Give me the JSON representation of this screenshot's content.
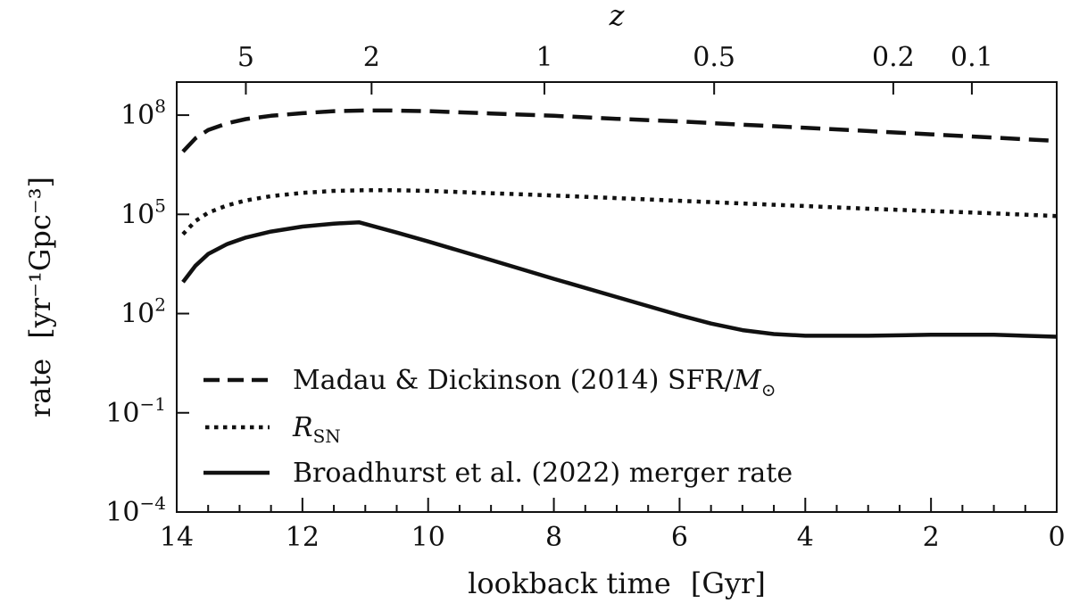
{
  "chart_data": {
    "type": "line",
    "xlabel": "lookback time",
    "xlabel_unit": "[Gyr]",
    "x_axis_reversed": true,
    "xlim": [
      14,
      0
    ],
    "x_ticks": [
      14,
      12,
      10,
      8,
      6,
      4,
      2,
      0
    ],
    "x_tick_labels": [
      "14",
      "12",
      "10",
      "8",
      "6",
      "4",
      "2",
      "0"
    ],
    "top_axis_label": "z",
    "top_ticks": [
      {
        "z": "5",
        "lookback": 12.9
      },
      {
        "z": "2",
        "lookback": 10.9
      },
      {
        "z": "1",
        "lookback": 8.15
      },
      {
        "z": "0.5",
        "lookback": 5.45
      },
      {
        "z": "0.2",
        "lookback": 2.6
      },
      {
        "z": "0.1",
        "lookback": 1.35
      }
    ],
    "ylabel": "rate",
    "ylabel_unit": "[yr⁻¹Gpc⁻³]",
    "y_scale": "log",
    "ylim_log10": [
      -4,
      9
    ],
    "y_ticks": [
      {
        "log10": 8,
        "base": "10",
        "exp": "8"
      },
      {
        "log10": 5,
        "base": "10",
        "exp": "5"
      },
      {
        "log10": 2,
        "base": "10",
        "exp": "2"
      },
      {
        "log10": -1,
        "base": "10",
        "exp": "−1"
      },
      {
        "log10": -4,
        "base": "10",
        "exp": "−4"
      }
    ],
    "grid": false,
    "legend_position": "bottom-left",
    "series": [
      {
        "key": "madau",
        "style": "dashed",
        "legend_parts": [
          "Madau & Dickinson (2014) SFR/",
          "M",
          "⊙"
        ],
        "x": [
          13.9,
          13.7,
          13.5,
          13.2,
          12.9,
          12.5,
          12.0,
          11.5,
          11.0,
          10.6,
          10.0,
          9.0,
          8.0,
          7.0,
          6.0,
          5.0,
          4.0,
          3.0,
          2.0,
          1.0,
          0.0
        ],
        "y_log10": [
          6.9,
          7.3,
          7.55,
          7.75,
          7.88,
          7.98,
          8.06,
          8.12,
          8.14,
          8.14,
          8.12,
          8.05,
          7.98,
          7.89,
          7.81,
          7.71,
          7.62,
          7.52,
          7.42,
          7.32,
          7.22
        ]
      },
      {
        "key": "rsn",
        "style": "dotted",
        "legend_parts": [
          "R",
          "SN"
        ],
        "x": [
          13.9,
          13.7,
          13.5,
          13.2,
          12.9,
          12.5,
          12.0,
          11.5,
          11.0,
          10.6,
          10.0,
          9.0,
          8.0,
          7.0,
          6.0,
          5.0,
          4.0,
          3.0,
          2.0,
          1.0,
          0.0
        ],
        "y_log10": [
          4.4,
          4.8,
          5.05,
          5.27,
          5.42,
          5.55,
          5.65,
          5.71,
          5.73,
          5.73,
          5.71,
          5.64,
          5.57,
          5.49,
          5.41,
          5.33,
          5.25,
          5.17,
          5.1,
          5.03,
          4.95
        ]
      },
      {
        "key": "broadhurst",
        "style": "solid",
        "legend_parts": [
          "Broadhurst et al. (2022) merger rate"
        ],
        "x": [
          13.9,
          13.7,
          13.5,
          13.2,
          12.9,
          12.5,
          12.0,
          11.5,
          11.1,
          10.5,
          10.0,
          9.0,
          8.0,
          7.0,
          6.0,
          5.5,
          5.0,
          4.5,
          4.0,
          3.0,
          2.0,
          1.0,
          0.0
        ],
        "y_log10": [
          2.95,
          3.45,
          3.8,
          4.1,
          4.3,
          4.48,
          4.63,
          4.72,
          4.76,
          4.45,
          4.18,
          3.62,
          3.05,
          2.5,
          1.95,
          1.7,
          1.5,
          1.38,
          1.33,
          1.33,
          1.36,
          1.36,
          1.3
        ]
      }
    ]
  }
}
